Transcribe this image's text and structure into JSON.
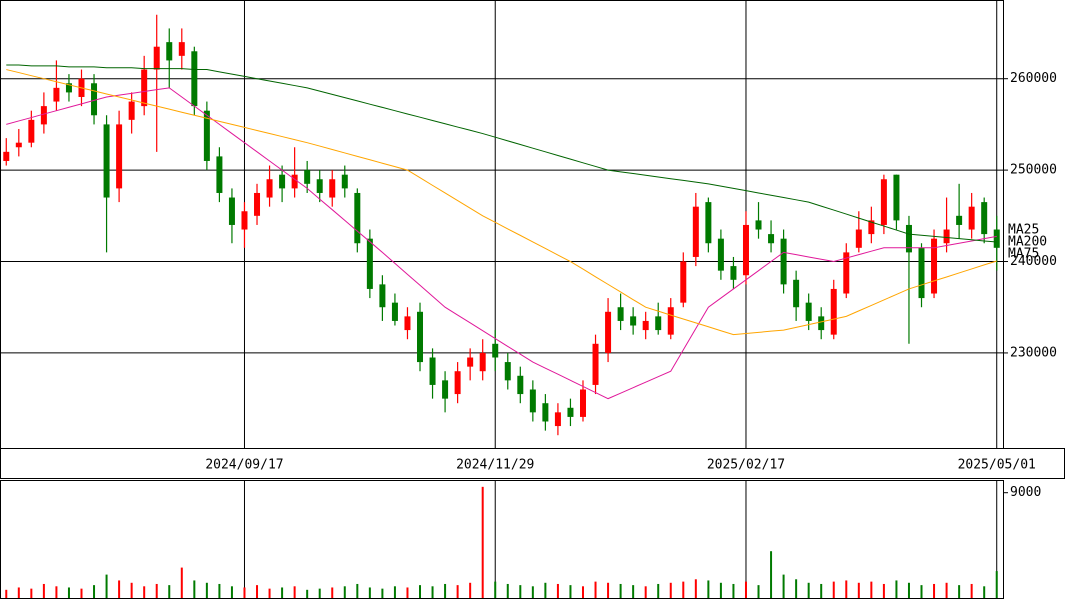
{
  "chart_data": [
    {
      "type": "candlestick",
      "categories": [
        null,
        null,
        null,
        null,
        null,
        null,
        null,
        null,
        null,
        null,
        null,
        null,
        null,
        null,
        null,
        null,
        null,
        null,
        null,
        "2024/09/17",
        null,
        null,
        null,
        null,
        null,
        null,
        null,
        null,
        null,
        null,
        null,
        null,
        null,
        null,
        null,
        null,
        null,
        null,
        null,
        "2024/11/29",
        null,
        null,
        null,
        null,
        null,
        null,
        null,
        null,
        null,
        null,
        null,
        null,
        null,
        null,
        null,
        null,
        null,
        null,
        null,
        "2025/02/17",
        null,
        null,
        null,
        null,
        null,
        null,
        null,
        null,
        null,
        null,
        null,
        null,
        null,
        null,
        null,
        null,
        null,
        null,
        null,
        "2025/05/01"
      ],
      "open": [
        251000,
        252500,
        253000,
        255000,
        257500,
        259500,
        258000,
        259500,
        255000,
        248000,
        255500,
        257000,
        261000,
        264000,
        262500,
        263000,
        256500,
        251500,
        247000,
        243500,
        245000,
        247000,
        249500,
        248000,
        250000,
        249000,
        247000,
        249500,
        247500,
        242500,
        237500,
        235500,
        232500,
        234500,
        229500,
        227000,
        225500,
        228500,
        228000,
        231000,
        229000,
        227500,
        226000,
        224500,
        222000,
        224000,
        223000,
        226500,
        230000,
        235000,
        234000,
        232500,
        234000,
        232000,
        235500,
        240500,
        246500,
        242500,
        239500,
        238500,
        244500,
        243000,
        242500,
        238000,
        235500,
        234000,
        232000,
        236500,
        241500,
        243000,
        244000,
        249500,
        244000,
        241500,
        236500,
        242000,
        245000,
        243500,
        246500,
        243500
      ],
      "high": [
        253500,
        254500,
        256500,
        258500,
        262000,
        260500,
        261000,
        260500,
        256000,
        256500,
        258500,
        262500,
        267000,
        265500,
        265500,
        263500,
        257500,
        252500,
        248000,
        246500,
        248500,
        250500,
        250500,
        252500,
        251000,
        250000,
        250000,
        250500,
        248000,
        243500,
        238500,
        236500,
        235000,
        235500,
        230500,
        228000,
        229000,
        230500,
        231500,
        232500,
        230000,
        228500,
        227000,
        225500,
        224500,
        225000,
        227000,
        232000,
        236000,
        236500,
        235000,
        234500,
        235500,
        236000,
        241000,
        247500,
        247000,
        243500,
        240500,
        245500,
        246500,
        244500,
        243500,
        239000,
        236500,
        235000,
        238000,
        242000,
        245500,
        246000,
        249500,
        249500,
        245000,
        242000,
        243500,
        247000,
        248500,
        247500,
        247000,
        245000
      ],
      "low": [
        250500,
        251500,
        252500,
        254000,
        256500,
        257500,
        257000,
        255000,
        241000,
        246500,
        254000,
        256000,
        252000,
        259000,
        261000,
        256000,
        250000,
        246500,
        242000,
        241500,
        244000,
        246000,
        246500,
        247000,
        247500,
        246500,
        246000,
        247000,
        241000,
        236000,
        233500,
        233000,
        231500,
        228000,
        225000,
        223500,
        224500,
        227000,
        227000,
        228000,
        226000,
        224500,
        222500,
        221500,
        221000,
        222000,
        222500,
        225500,
        229000,
        232500,
        232000,
        231500,
        232000,
        231500,
        235000,
        239500,
        241000,
        238000,
        237000,
        237500,
        242500,
        241000,
        236500,
        233500,
        232500,
        231500,
        231500,
        236000,
        241000,
        242000,
        243000,
        243500,
        231000,
        235000,
        236000,
        241000,
        242500,
        242500,
        242000,
        239000
      ],
      "close": [
        252000,
        253000,
        255500,
        257000,
        259000,
        258500,
        260000,
        256000,
        247000,
        255000,
        257500,
        261000,
        263500,
        262000,
        264000,
        257000,
        251000,
        247500,
        244000,
        245500,
        247500,
        249000,
        248000,
        249500,
        248500,
        247500,
        249000,
        248000,
        242000,
        237000,
        235000,
        233500,
        234000,
        229000,
        226500,
        225000,
        228000,
        229500,
        230000,
        229500,
        227000,
        225500,
        223500,
        222500,
        223500,
        223000,
        226000,
        231000,
        234500,
        233500,
        233000,
        233500,
        232500,
        235000,
        240000,
        246000,
        242000,
        239000,
        238000,
        244000,
        243500,
        242000,
        237500,
        235000,
        233500,
        232500,
        237000,
        241000,
        243500,
        244500,
        249000,
        244500,
        241000,
        236000,
        242500,
        243500,
        244000,
        246000,
        243000,
        241500
      ],
      "up_color": "#ff0000",
      "down_color": "#007a00",
      "ylim": [
        219600,
        268500
      ],
      "yticks": [
        230000,
        240000,
        250000,
        260000
      ],
      "grid": true,
      "series": [
        {
          "name": "MA25",
          "color": "#e0189a",
          "values": [
            255000,
            255380,
            255750,
            256130,
            256500,
            256880,
            257250,
            257630,
            258000,
            258200,
            258400,
            258600,
            258800,
            259000,
            258000,
            257000,
            256000,
            255000,
            254000,
            253000,
            252000,
            251000,
            250000,
            249000,
            248000,
            246830,
            245670,
            244500,
            243330,
            242170,
            241000,
            239800,
            238600,
            237400,
            236200,
            235000,
            234140,
            233290,
            232430,
            231570,
            230710,
            229860,
            229000,
            228330,
            227670,
            227000,
            226330,
            225670,
            225000,
            225600,
            226200,
            226800,
            227400,
            228000,
            230330,
            232670,
            235000,
            236000,
            237000,
            238000,
            239000,
            240000,
            241000,
            240750,
            240500,
            240250,
            240000,
            240380,
            240750,
            241130,
            241500,
            241500,
            241500,
            241500,
            241500,
            241750,
            242000,
            242250,
            242500,
            242750
          ]
        },
        {
          "name": "MA200",
          "color": "#006400",
          "values": [
            261500,
            261500,
            261400,
            261400,
            261400,
            261300,
            261300,
            261300,
            261200,
            261200,
            261200,
            261100,
            261100,
            261100,
            261100,
            261000,
            261000,
            260750,
            260500,
            260250,
            260000,
            259750,
            259500,
            259250,
            259000,
            258640,
            258290,
            257930,
            257570,
            257210,
            256860,
            256500,
            256140,
            255790,
            255430,
            255070,
            254710,
            254360,
            254000,
            253600,
            253200,
            252800,
            252400,
            252000,
            251600,
            251200,
            250800,
            250400,
            250000,
            249810,
            249630,
            249440,
            249250,
            249060,
            248880,
            248690,
            248500,
            248250,
            248000,
            247750,
            247500,
            247250,
            247000,
            246750,
            246500,
            246060,
            245630,
            245190,
            244750,
            244310,
            243880,
            243440,
            243000,
            242880,
            242750,
            242630,
            242500,
            242380,
            242250,
            242130
          ]
        },
        {
          "name": "MA75",
          "color": "#ffa500",
          "values": [
            261000,
            260670,
            260330,
            260000,
            259670,
            259330,
            259000,
            258670,
            258330,
            258000,
            257670,
            257330,
            257000,
            256670,
            256330,
            256000,
            255670,
            255330,
            255000,
            254670,
            254330,
            254000,
            253670,
            253330,
            253000,
            252630,
            252250,
            251880,
            251500,
            251130,
            250750,
            250380,
            250000,
            249170,
            248330,
            247500,
            246670,
            245830,
            245000,
            244290,
            243570,
            242860,
            242140,
            241430,
            240710,
            240000,
            239170,
            238330,
            237500,
            236670,
            235830,
            235000,
            234570,
            234140,
            233710,
            233290,
            232860,
            232430,
            232000,
            232130,
            232250,
            232380,
            232500,
            232800,
            233100,
            233400,
            233700,
            234000,
            234600,
            235200,
            235800,
            236400,
            237000,
            237440,
            237880,
            238310,
            238750,
            239190,
            239630,
            240060
          ]
        }
      ]
    },
    {
      "type": "bar",
      "values": [
        700,
        900,
        800,
        1200,
        1000,
        900,
        800,
        1100,
        2000,
        1500,
        1300,
        1000,
        1200,
        1100,
        2600,
        1500,
        1300,
        1200,
        1000,
        900,
        1100,
        800,
        900,
        1000,
        700,
        800,
        900,
        1000,
        1200,
        900,
        800,
        1000,
        900,
        1100,
        1000,
        1200,
        1100,
        1300,
        9500,
        1400,
        1200,
        1100,
        1000,
        1300,
        1200,
        1100,
        1000,
        1400,
        1300,
        1200,
        1100,
        1000,
        1200,
        1300,
        1400,
        1600,
        1500,
        1300,
        1200,
        1400,
        1100,
        4000,
        2000,
        1600,
        1300,
        1200,
        1400,
        1500,
        1300,
        1400,
        1200,
        1500,
        1300,
        1100,
        1200,
        1300,
        1100,
        1200,
        1000,
        2300
      ],
      "ylim": [
        0,
        10000
      ],
      "yticks": [
        9000
      ]
    }
  ]
}
